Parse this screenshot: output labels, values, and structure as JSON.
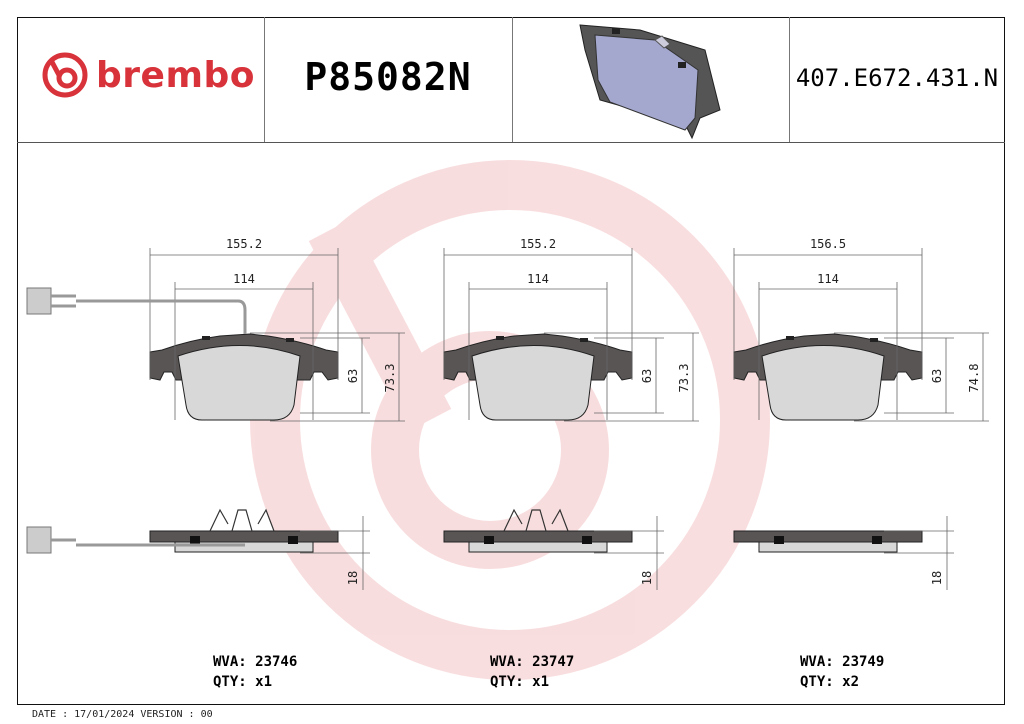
{
  "header": {
    "brand": "brembo",
    "brand_color": "#d8323a",
    "part_number": "P85082N",
    "oem_reference": "407.E672.431.N"
  },
  "pads": [
    {
      "width_outer": "155.2",
      "width_inner": "114",
      "height_inner": "63",
      "height_outer": "73.3",
      "thickness": "18",
      "wva_label": "WVA: 23746",
      "qty_label": "QTY: x1",
      "wear_sensor": true
    },
    {
      "width_outer": "155.2",
      "width_inner": "114",
      "height_inner": "63",
      "height_outer": "73.3",
      "thickness": "18",
      "wva_label": "WVA: 23747",
      "qty_label": "QTY: x1",
      "wear_sensor": false
    },
    {
      "width_outer": "156.5",
      "width_inner": "114",
      "height_inner": "63",
      "height_outer": "74.8",
      "thickness": "18",
      "wva_label": "WVA: 23749",
      "qty_label": "QTY: x2",
      "wear_sensor": false
    }
  ],
  "footer": {
    "text": "DATE : 17/01/2024 VERSION : 00"
  }
}
